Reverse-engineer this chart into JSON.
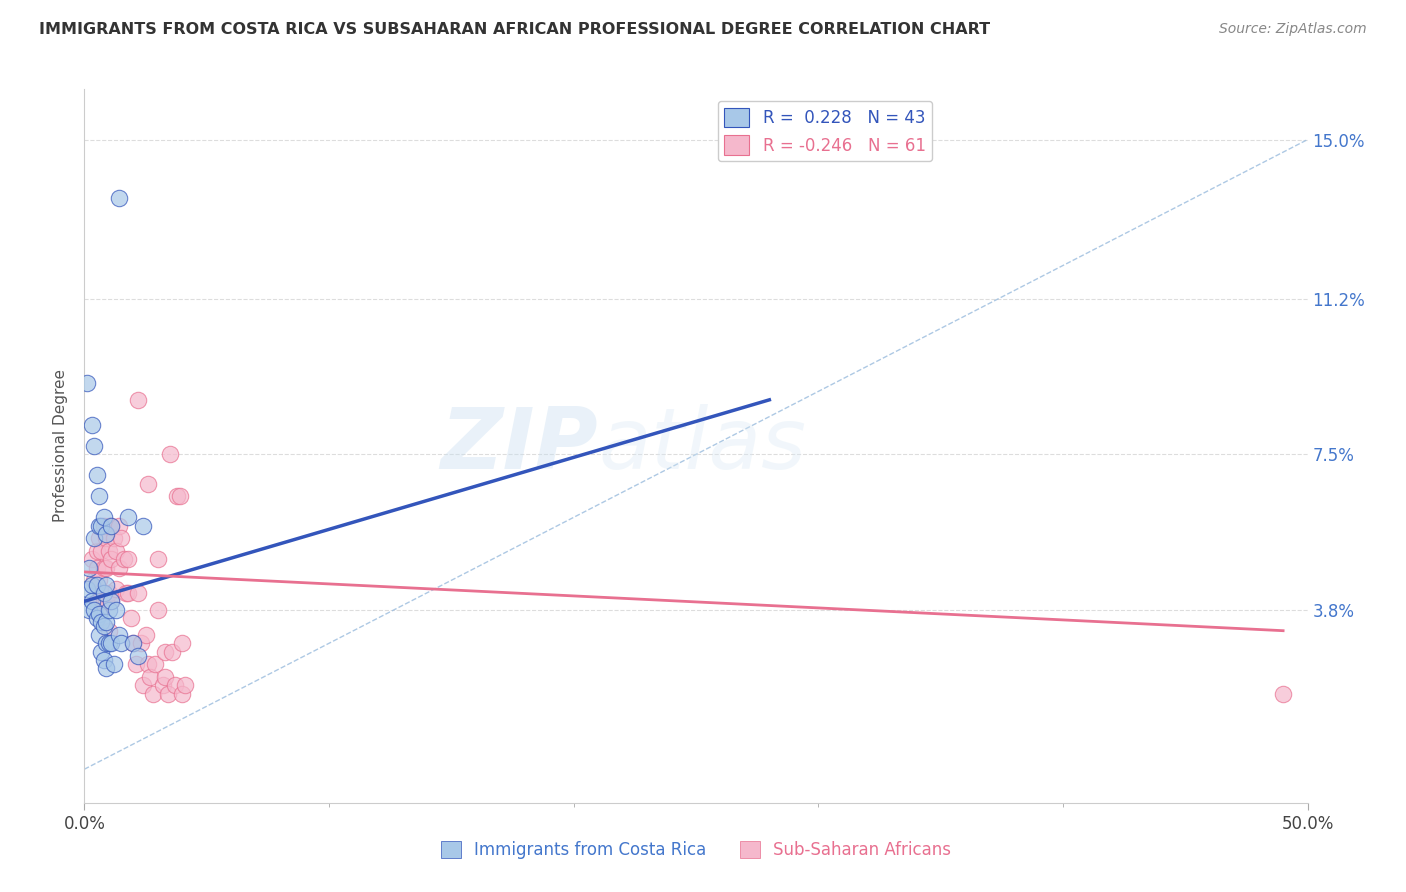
{
  "title": "IMMIGRANTS FROM COSTA RICA VS SUBSAHARAN AFRICAN PROFESSIONAL DEGREE CORRELATION CHART",
  "source": "Source: ZipAtlas.com",
  "ylabel": "Professional Degree",
  "ytick_labels": [
    "15.0%",
    "11.2%",
    "7.5%",
    "3.8%"
  ],
  "ytick_values": [
    0.15,
    0.112,
    0.075,
    0.038
  ],
  "xlim": [
    0.0,
    0.5
  ],
  "ylim": [
    -0.008,
    0.162
  ],
  "legend_blue_r": "0.228",
  "legend_blue_n": "43",
  "legend_pink_r": "-0.246",
  "legend_pink_n": "61",
  "blue_scatter_color": "#a8c8e8",
  "pink_scatter_color": "#f5b8cc",
  "blue_line_color": "#3355bb",
  "pink_line_color": "#e87090",
  "dashed_line_color": "#99bbdd",
  "blue_scatter": [
    [
      0.001,
      0.043
    ],
    [
      0.002,
      0.048
    ],
    [
      0.002,
      0.038
    ],
    [
      0.003,
      0.044
    ],
    [
      0.003,
      0.04
    ],
    [
      0.004,
      0.055
    ],
    [
      0.004,
      0.038
    ],
    [
      0.005,
      0.044
    ],
    [
      0.005,
      0.036
    ],
    [
      0.006,
      0.037
    ],
    [
      0.006,
      0.032
    ],
    [
      0.006,
      0.058
    ],
    [
      0.007,
      0.058
    ],
    [
      0.007,
      0.035
    ],
    [
      0.007,
      0.028
    ],
    [
      0.008,
      0.06
    ],
    [
      0.008,
      0.042
    ],
    [
      0.008,
      0.034
    ],
    [
      0.008,
      0.026
    ],
    [
      0.009,
      0.056
    ],
    [
      0.009,
      0.044
    ],
    [
      0.009,
      0.035
    ],
    [
      0.009,
      0.03
    ],
    [
      0.009,
      0.024
    ],
    [
      0.01,
      0.038
    ],
    [
      0.01,
      0.03
    ],
    [
      0.011,
      0.058
    ],
    [
      0.011,
      0.04
    ],
    [
      0.011,
      0.03
    ],
    [
      0.012,
      0.025
    ],
    [
      0.013,
      0.038
    ],
    [
      0.014,
      0.032
    ],
    [
      0.015,
      0.03
    ],
    [
      0.018,
      0.06
    ],
    [
      0.02,
      0.03
    ],
    [
      0.022,
      0.027
    ],
    [
      0.001,
      0.092
    ],
    [
      0.003,
      0.082
    ],
    [
      0.004,
      0.077
    ],
    [
      0.005,
      0.07
    ],
    [
      0.006,
      0.065
    ],
    [
      0.024,
      0.058
    ],
    [
      0.014,
      0.136
    ]
  ],
  "pink_scatter": [
    [
      0.003,
      0.05
    ],
    [
      0.004,
      0.045
    ],
    [
      0.005,
      0.048
    ],
    [
      0.005,
      0.052
    ],
    [
      0.005,
      0.04
    ],
    [
      0.006,
      0.055
    ],
    [
      0.006,
      0.045
    ],
    [
      0.007,
      0.052
    ],
    [
      0.007,
      0.042
    ],
    [
      0.007,
      0.038
    ],
    [
      0.008,
      0.058
    ],
    [
      0.008,
      0.048
    ],
    [
      0.008,
      0.04
    ],
    [
      0.009,
      0.055
    ],
    [
      0.009,
      0.048
    ],
    [
      0.009,
      0.04
    ],
    [
      0.01,
      0.058
    ],
    [
      0.01,
      0.052
    ],
    [
      0.01,
      0.042
    ],
    [
      0.01,
      0.033
    ],
    [
      0.011,
      0.058
    ],
    [
      0.011,
      0.05
    ],
    [
      0.011,
      0.04
    ],
    [
      0.012,
      0.055
    ],
    [
      0.013,
      0.052
    ],
    [
      0.013,
      0.043
    ],
    [
      0.014,
      0.058
    ],
    [
      0.014,
      0.048
    ],
    [
      0.015,
      0.055
    ],
    [
      0.016,
      0.05
    ],
    [
      0.017,
      0.042
    ],
    [
      0.018,
      0.05
    ],
    [
      0.018,
      0.042
    ],
    [
      0.019,
      0.036
    ],
    [
      0.02,
      0.03
    ],
    [
      0.021,
      0.025
    ],
    [
      0.022,
      0.042
    ],
    [
      0.023,
      0.03
    ],
    [
      0.024,
      0.02
    ],
    [
      0.025,
      0.032
    ],
    [
      0.026,
      0.025
    ],
    [
      0.027,
      0.022
    ],
    [
      0.028,
      0.018
    ],
    [
      0.029,
      0.025
    ],
    [
      0.03,
      0.05
    ],
    [
      0.03,
      0.038
    ],
    [
      0.032,
      0.02
    ],
    [
      0.033,
      0.028
    ],
    [
      0.033,
      0.022
    ],
    [
      0.034,
      0.018
    ],
    [
      0.036,
      0.028
    ],
    [
      0.037,
      0.02
    ],
    [
      0.022,
      0.088
    ],
    [
      0.026,
      0.068
    ],
    [
      0.035,
      0.075
    ],
    [
      0.04,
      0.03
    ],
    [
      0.038,
      0.065
    ],
    [
      0.039,
      0.065
    ],
    [
      0.04,
      0.018
    ],
    [
      0.041,
      0.02
    ],
    [
      0.49,
      0.018
    ]
  ],
  "blue_line": {
    "x0": 0.0,
    "y0": 0.04,
    "x1": 0.28,
    "y1": 0.088
  },
  "pink_line": {
    "x0": 0.0,
    "y0": 0.047,
    "x1": 0.49,
    "y1": 0.033
  },
  "dashed_line": {
    "x0": 0.0,
    "y0": 0.0,
    "x1": 0.5,
    "y1": 0.15
  },
  "watermark_zip": "ZIP",
  "watermark_atlas": "atlas",
  "background_color": "#ffffff",
  "grid_color": "#dddddd",
  "xtick_positions": [
    0.0,
    0.5
  ],
  "xtick_labels": [
    "0.0%",
    "50.0%"
  ],
  "xtick_minor_positions": [
    0.1,
    0.2,
    0.3,
    0.4
  ]
}
